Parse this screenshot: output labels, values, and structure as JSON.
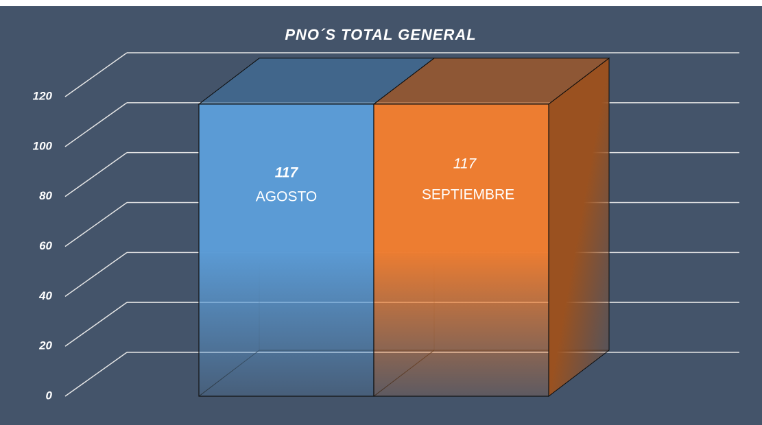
{
  "chart_data": {
    "type": "bar3d",
    "title": "PNO´S TOTAL GENERAL",
    "categories": [
      "AGOSTO",
      "SEPTIEMBRE"
    ],
    "values": [
      117,
      117
    ],
    "colors": [
      "#5b9bd5",
      "#ed7d31"
    ],
    "ylim": [
      0,
      120
    ],
    "yticks": [
      0,
      20,
      40,
      60,
      80,
      100,
      120
    ],
    "grid": true
  }
}
